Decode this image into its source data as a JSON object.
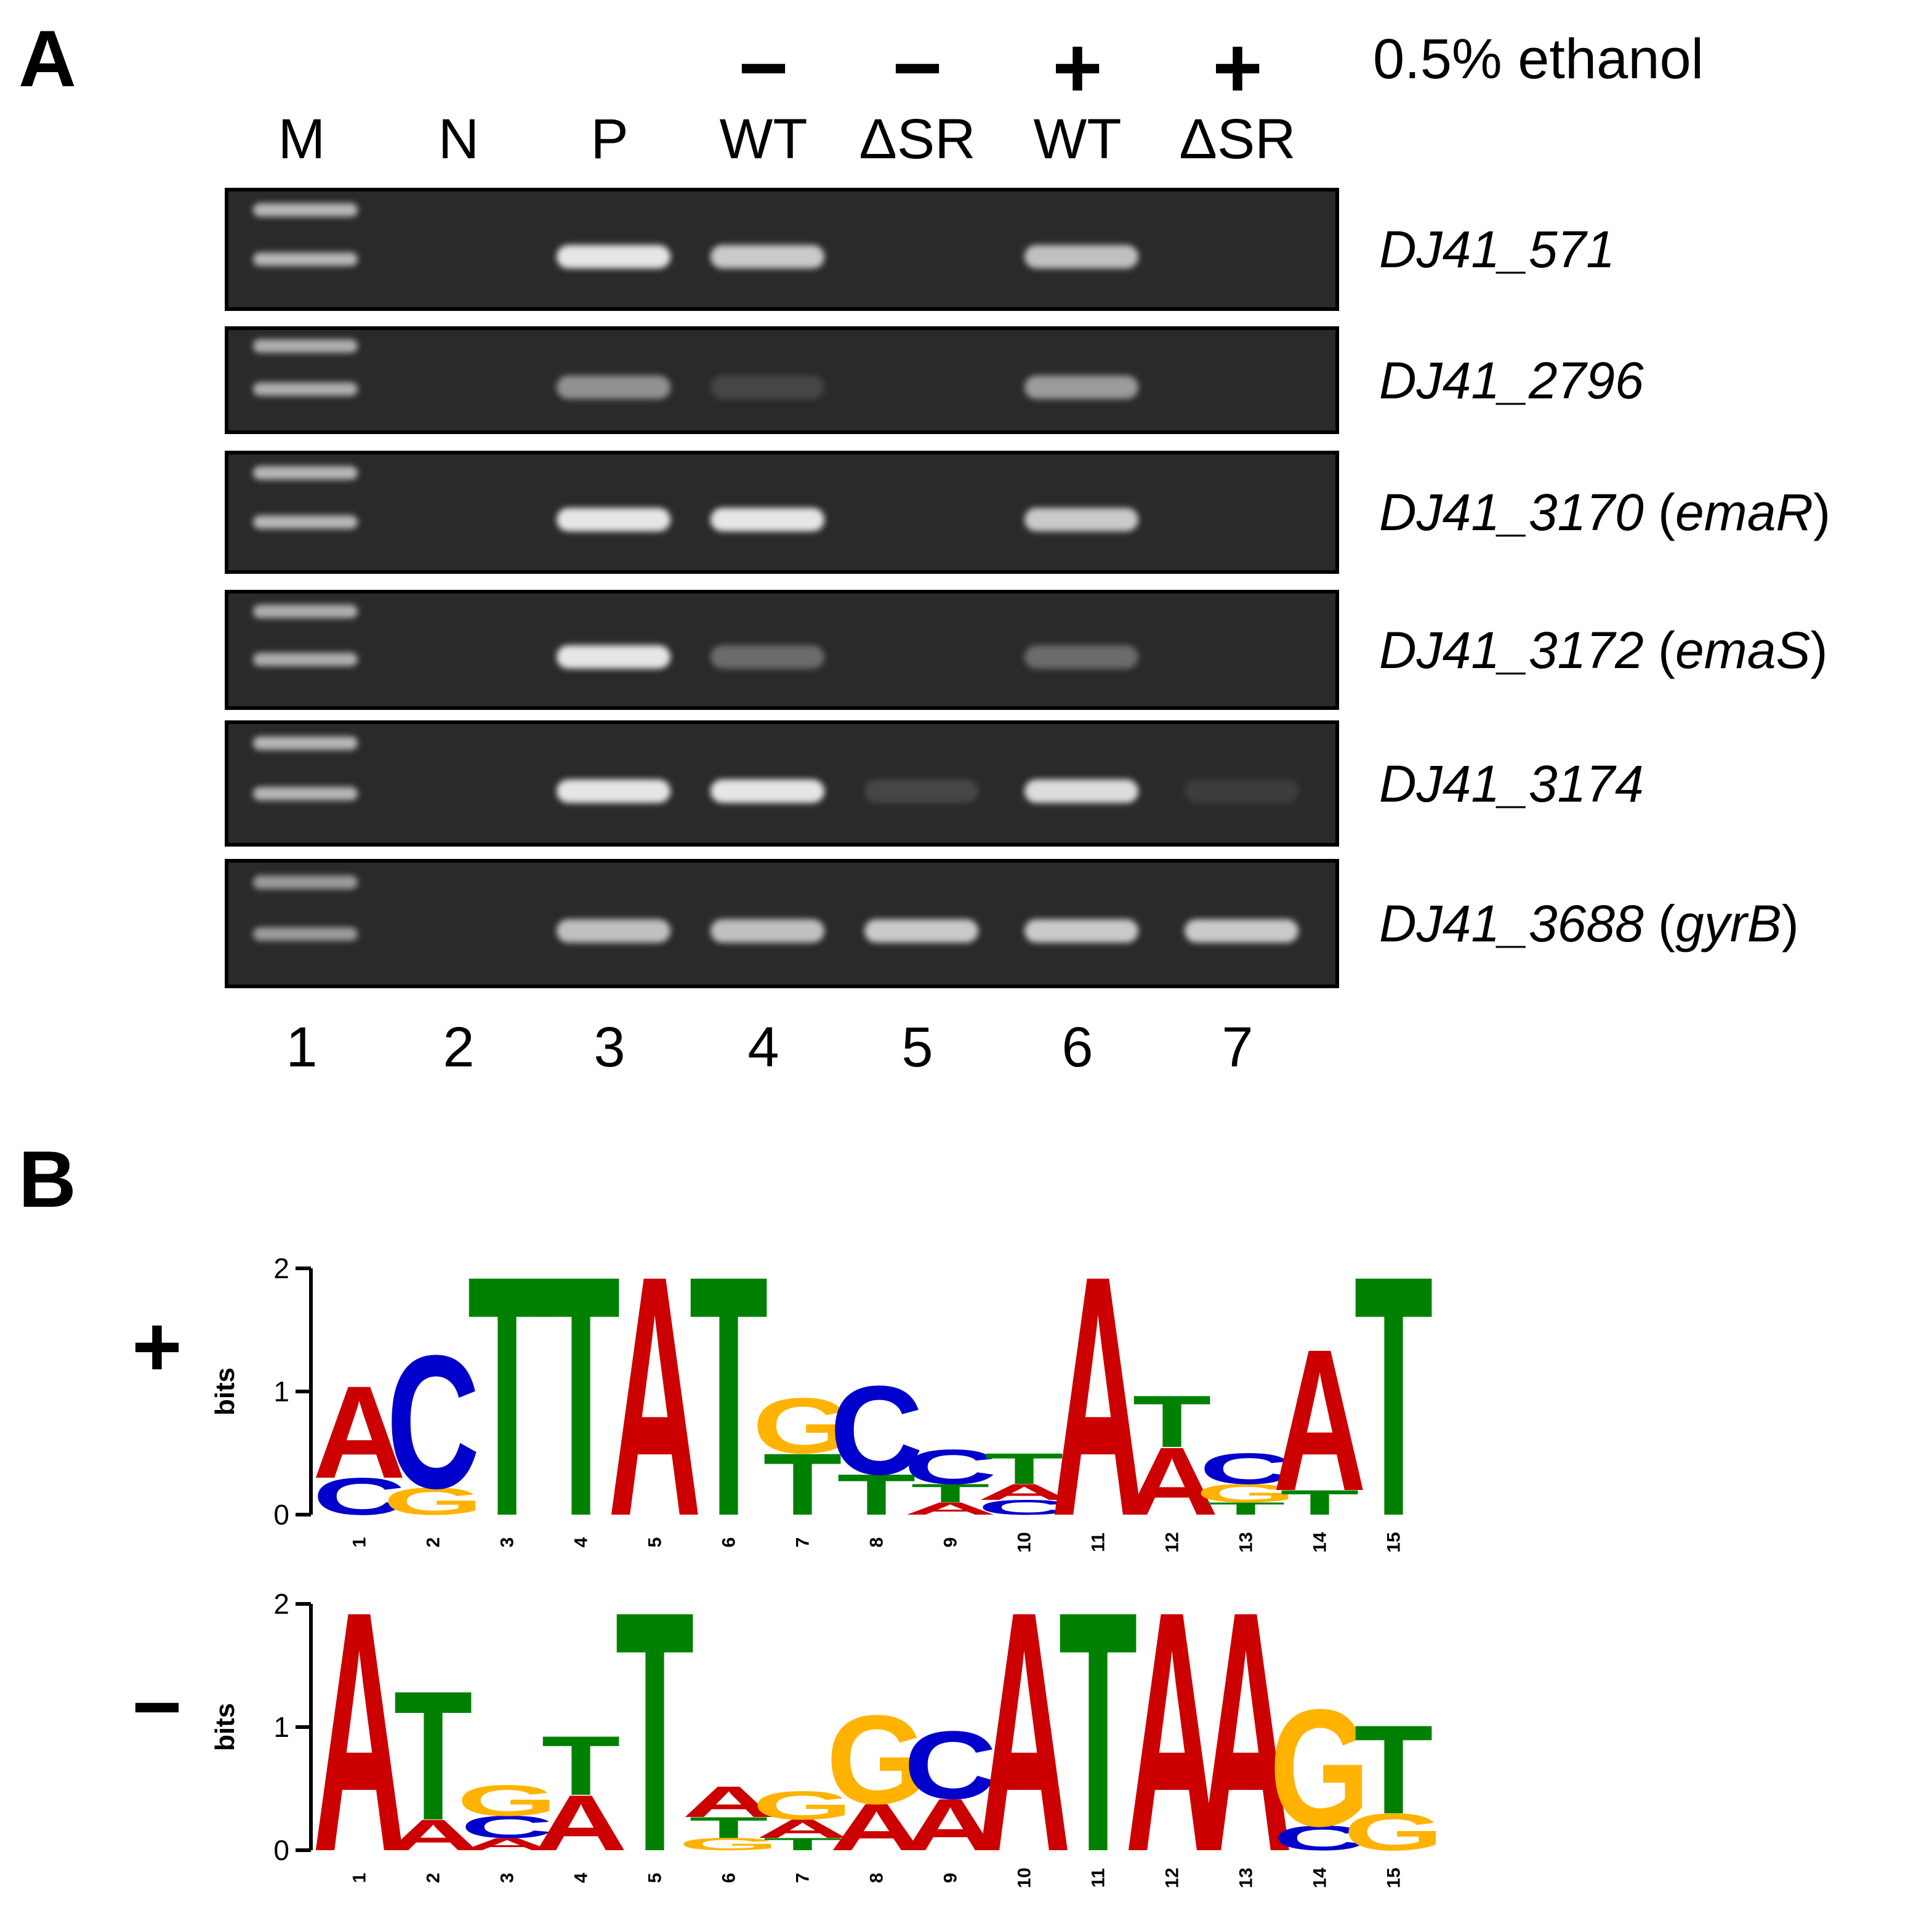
{
  "panel_a": {
    "label": "A",
    "ethanol_label": "0.5% ethanol",
    "ethanol_signs": [
      "−",
      "−",
      "+",
      "+"
    ],
    "lane_headers": [
      "M",
      "N",
      "P",
      "WT",
      "ΔSR",
      "WT",
      "ΔSR"
    ],
    "lane_numbers": [
      "1",
      "2",
      "3",
      "4",
      "5",
      "6",
      "7"
    ],
    "genes": [
      {
        "id": "DJ41_571",
        "extra": ""
      },
      {
        "id": "DJ41_2796",
        "extra": ""
      },
      {
        "id": "DJ41_3170",
        "extra": "emaR"
      },
      {
        "id": "DJ41_3172",
        "extra": "emaS"
      },
      {
        "id": "DJ41_3174",
        "extra": ""
      },
      {
        "id": "DJ41_3688",
        "extra": "gyrB"
      }
    ],
    "gel_band_intensity": [
      [
        0.75,
        0,
        1.0,
        0.85,
        0,
        0.8,
        0
      ],
      [
        0.7,
        0,
        0.55,
        0.15,
        0,
        0.6,
        0
      ],
      [
        0.75,
        0,
        1.0,
        1.0,
        0,
        0.85,
        0
      ],
      [
        0.7,
        0,
        1.0,
        0.35,
        0,
        0.35,
        0
      ],
      [
        0.75,
        0,
        1.0,
        1.0,
        0.15,
        0.95,
        0.1
      ],
      [
        0.6,
        0,
        0.8,
        0.8,
        0.85,
        0.85,
        0.85
      ]
    ]
  },
  "panel_b": {
    "label": "B",
    "logos": [
      {
        "strand": "+",
        "ylabel": "bits",
        "yticks": [
          "0",
          "1",
          "2"
        ],
        "positions": [
          "1",
          "2",
          "3",
          "4",
          "5",
          "6",
          "7",
          "8",
          "9",
          "10",
          "11",
          "12",
          "13",
          "14",
          "15"
        ],
        "columns": [
          [
            [
              "C",
              0.3
            ],
            [
              "A",
              0.75
            ]
          ],
          [
            [
              "G",
              0.22
            ],
            [
              "C",
              1.08
            ]
          ],
          [
            [
              "T",
              1.95
            ]
          ],
          [
            [
              "T",
              1.95
            ]
          ],
          [
            [
              "A",
              1.95
            ]
          ],
          [
            [
              "T",
              1.95
            ]
          ],
          [
            [
              "T",
              0.5
            ],
            [
              "G",
              0.45
            ]
          ],
          [
            [
              "T",
              0.33
            ],
            [
              "C",
              0.72
            ]
          ],
          [
            [
              "A",
              0.1
            ],
            [
              "T",
              0.15
            ],
            [
              "C",
              0.28
            ]
          ],
          [
            [
              "C",
              0.12
            ],
            [
              "A",
              0.13
            ],
            [
              "T",
              0.25
            ]
          ],
          [
            [
              "A",
              1.95
            ]
          ],
          [
            [
              "A",
              0.55
            ],
            [
              "T",
              0.42
            ]
          ],
          [
            [
              "T",
              0.1
            ],
            [
              "G",
              0.15
            ],
            [
              "C",
              0.25
            ]
          ],
          [
            [
              "T",
              0.2
            ],
            [
              "A",
              1.15
            ]
          ],
          [
            [
              "T",
              1.95
            ]
          ]
        ]
      },
      {
        "strand": "−",
        "ylabel": "bits",
        "yticks": [
          "0",
          "1",
          "2"
        ],
        "positions": [
          "1",
          "2",
          "3",
          "4",
          "5",
          "6",
          "7",
          "8",
          "9",
          "10",
          "11",
          "12",
          "13",
          "14",
          "15"
        ],
        "columns": [
          [
            [
              "A",
              1.95
            ]
          ],
          [
            [
              "A",
              0.25
            ],
            [
              "T",
              1.05
            ]
          ],
          [
            [
              "A",
              0.1
            ],
            [
              "C",
              0.18
            ],
            [
              "G",
              0.25
            ]
          ],
          [
            [
              "A",
              0.45
            ],
            [
              "T",
              0.48
            ]
          ],
          [
            [
              "T",
              1.95
            ]
          ],
          [
            [
              "G",
              0.1
            ],
            [
              "T",
              0.17
            ],
            [
              "A",
              0.25
            ]
          ],
          [
            [
              "T",
              0.1
            ],
            [
              "A",
              0.15
            ],
            [
              "G",
              0.23
            ]
          ],
          [
            [
              "A",
              0.38
            ],
            [
              "G",
              0.72
            ]
          ],
          [
            [
              "A",
              0.42
            ],
            [
              "C",
              0.55
            ]
          ],
          [
            [
              "A",
              1.95
            ]
          ],
          [
            [
              "T",
              1.95
            ]
          ],
          [
            [
              "A",
              1.95
            ]
          ],
          [
            [
              "A",
              1.95
            ]
          ],
          [
            [
              "C",
              0.2
            ],
            [
              "G",
              0.95
            ]
          ],
          [
            [
              "G",
              0.3
            ],
            [
              "T",
              0.72
            ]
          ]
        ]
      }
    ],
    "base_colors": {
      "A": "#cc0000",
      "C": "#0000cc",
      "G": "#ffb300",
      "T": "#008000"
    }
  }
}
